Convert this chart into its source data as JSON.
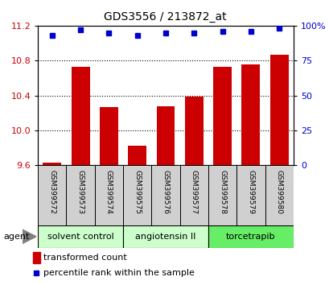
{
  "title": "GDS3556 / 213872_at",
  "samples": [
    "GSM399572",
    "GSM399573",
    "GSM399574",
    "GSM399575",
    "GSM399576",
    "GSM399577",
    "GSM399578",
    "GSM399579",
    "GSM399580"
  ],
  "bar_values": [
    9.63,
    10.73,
    10.27,
    9.82,
    10.28,
    10.39,
    10.73,
    10.76,
    10.87
  ],
  "percentile_values": [
    93,
    97,
    95,
    93,
    95,
    95,
    96,
    96,
    98
  ],
  "ylim_left": [
    9.6,
    11.2
  ],
  "ylim_right": [
    0,
    100
  ],
  "yticks_left": [
    9.6,
    10.0,
    10.4,
    10.8,
    11.2
  ],
  "yticks_right": [
    0,
    25,
    50,
    75,
    100
  ],
  "ytick_labels_right": [
    "0",
    "25",
    "50",
    "75",
    "100%"
  ],
  "bar_color": "#cc0000",
  "dot_color": "#0000cc",
  "bar_bottom": 9.6,
  "groups": [
    {
      "label": "solvent control",
      "start": 0,
      "end": 3,
      "color": "#ccffcc"
    },
    {
      "label": "angiotensin II",
      "start": 3,
      "end": 6,
      "color": "#ccffcc"
    },
    {
      "label": "torcetrapib",
      "start": 6,
      "end": 9,
      "color": "#66ee66"
    }
  ],
  "legend_bar_label": "transformed count",
  "legend_dot_label": "percentile rank within the sample",
  "agent_label": "agent",
  "sample_bg_color": "#d0d0d0",
  "title_fontsize": 10,
  "tick_fontsize": 8,
  "sample_fontsize": 6.5,
  "group_fontsize": 8,
  "legend_fontsize": 8,
  "agent_fontsize": 8
}
